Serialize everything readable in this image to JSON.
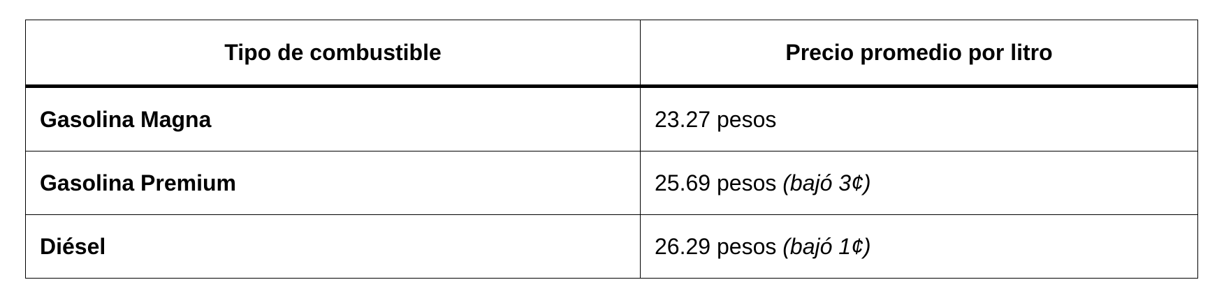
{
  "table": {
    "headers": [
      "Tipo de combustible",
      "Precio promedio por litro"
    ],
    "rows": [
      {
        "fuel": "Gasolina Magna",
        "price": "23.27 pesos",
        "note": ""
      },
      {
        "fuel": "Gasolina Premium",
        "price": "25.69 pesos",
        "note": "(bajó 3¢)"
      },
      {
        "fuel": "Diésel",
        "price": "26.29 pesos",
        "note": "(bajó 1¢)"
      }
    ]
  }
}
